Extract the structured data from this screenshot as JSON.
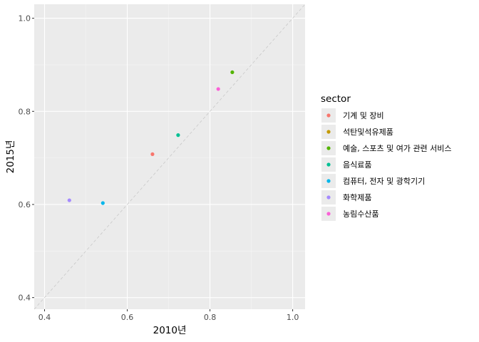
{
  "chart_data": {
    "type": "scatter",
    "title": "",
    "xlabel": "2010년",
    "ylabel": "2015년",
    "xlim": [
      0.375,
      1.03
    ],
    "ylim": [
      0.375,
      1.03
    ],
    "x_ticks": [
      0.4,
      0.6,
      0.8,
      1.0
    ],
    "x_tick_labels": [
      "0.4",
      "0.6",
      "0.8",
      "1.0"
    ],
    "y_ticks": [
      0.4,
      0.6,
      0.8,
      1.0
    ],
    "y_tick_labels": [
      "0.4",
      "0.6",
      "0.8",
      "1.0"
    ],
    "grid": true,
    "reference_line": {
      "type": "y=x",
      "style": "dashed",
      "color": "#c8c8c8"
    },
    "legend": {
      "title": "sector",
      "position": "right",
      "entries": [
        {
          "label": "기계 및 장비",
          "color": "#F8766D"
        },
        {
          "label": "석탄및석유제품",
          "color": "#C49A00"
        },
        {
          "label": "예술, 스포츠 및 여가 관련 서비스",
          "color": "#53B400"
        },
        {
          "label": "음식료품",
          "color": "#00C094"
        },
        {
          "label": "컴퓨터, 전자 및 광학기기",
          "color": "#00B6EB"
        },
        {
          "label": "화학제품",
          "color": "#A58AFF"
        },
        {
          "label": "농림수산품",
          "color": "#FB61D7"
        }
      ]
    },
    "points": [
      {
        "sector": "기계 및 장비",
        "x": 0.661,
        "y": 0.708,
        "color": "#F8766D"
      },
      {
        "sector": "예술, 스포츠 및 여가 관련 서비스",
        "x": 0.854,
        "y": 0.884,
        "color": "#53B400"
      },
      {
        "sector": "음식료품",
        "x": 0.723,
        "y": 0.749,
        "color": "#00C094"
      },
      {
        "sector": "컴퓨터, 전자 및 광학기기",
        "x": 0.541,
        "y": 0.603,
        "color": "#00B6EB"
      },
      {
        "sector": "화학제품",
        "x": 0.46,
        "y": 0.609,
        "color": "#A58AFF"
      },
      {
        "sector": "농림수산품",
        "x": 0.82,
        "y": 0.848,
        "color": "#FB61D7"
      }
    ]
  }
}
